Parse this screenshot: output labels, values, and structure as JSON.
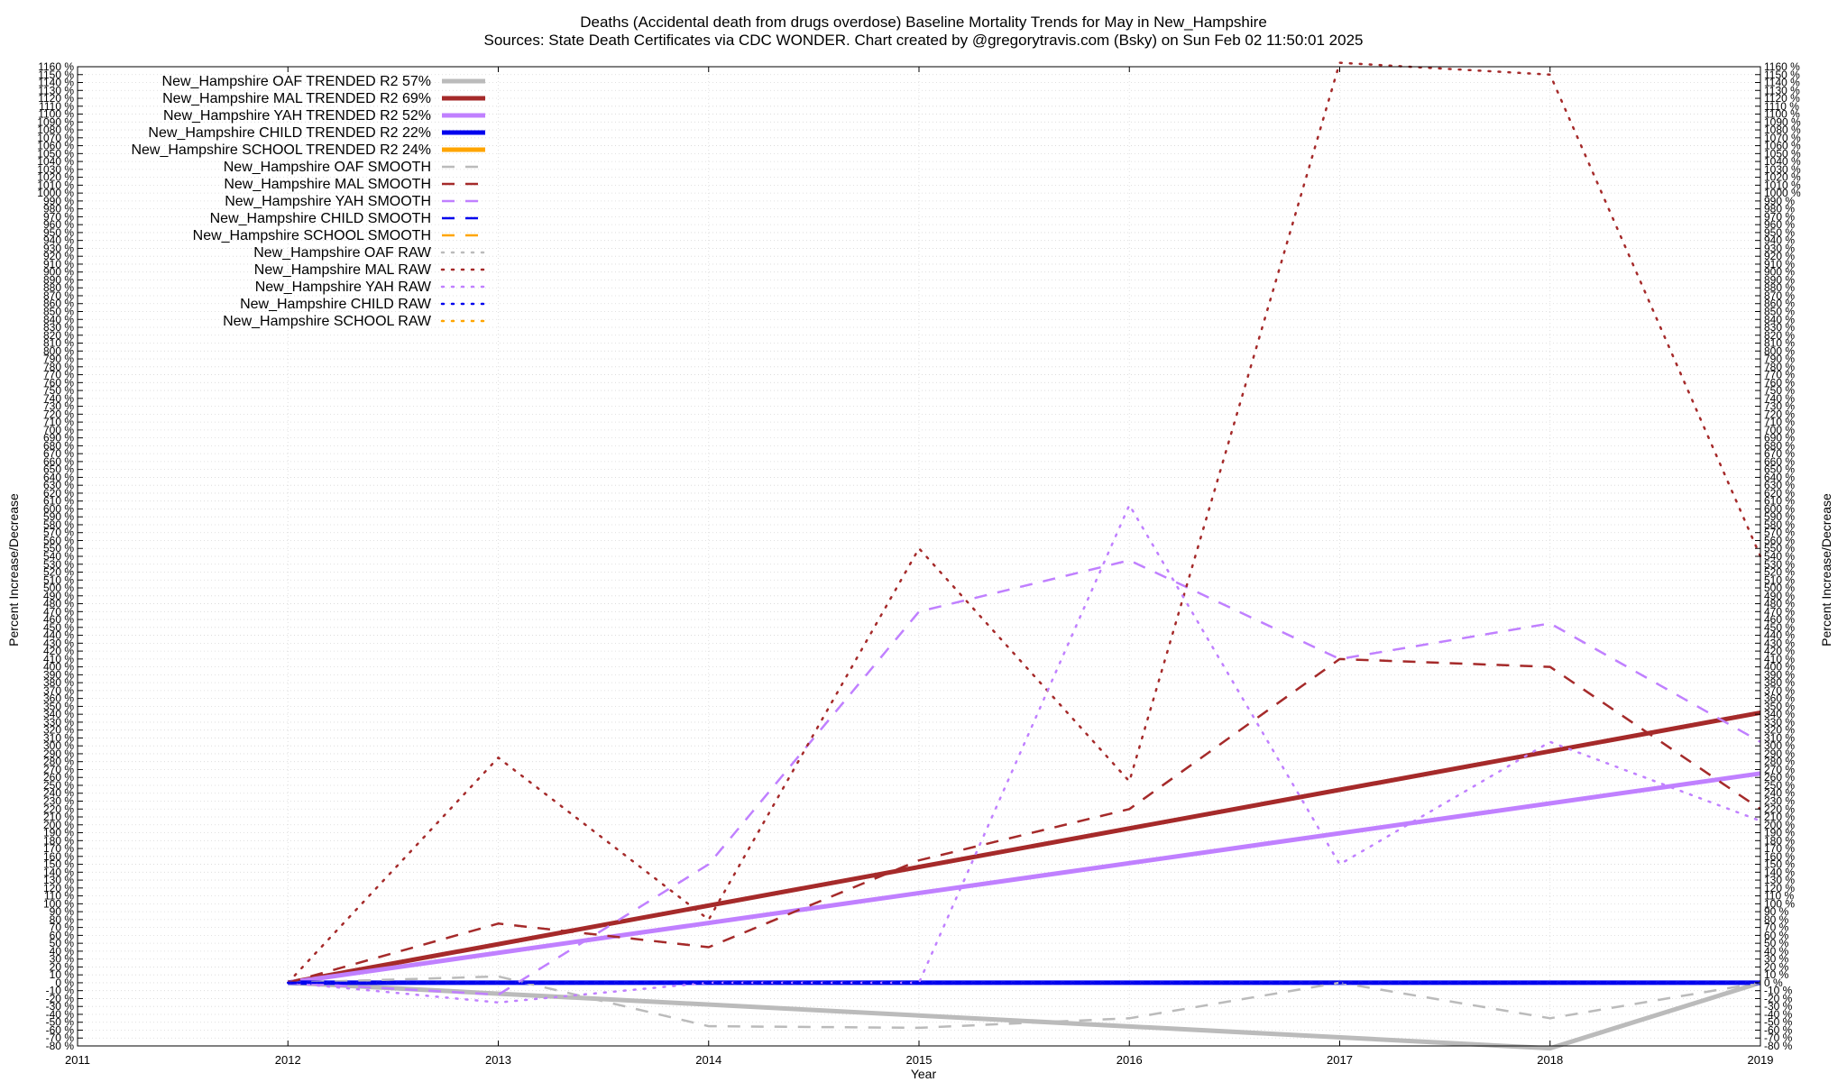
{
  "chart_data": {
    "type": "line",
    "title_line1": "Deaths (Accidental death from drugs overdose)  Baseline Mortality Trends for May in New_Hampshire",
    "title_line2": "Sources: State Death Certificates via CDC WONDER.                Chart created by @gregorytravis.com (Bsky) on Sun Feb 02 11:50:01 2025",
    "xlabel": "Year",
    "ylabel": "Percent Increase/Decrease",
    "xlim": [
      2011,
      2019
    ],
    "ylim": [
      -80,
      1160
    ],
    "ytick_step": 10,
    "ytick_suffix": " %",
    "x_ticks": [
      "2011",
      "2012",
      "2013",
      "2014",
      "2015",
      "2016",
      "2017",
      "2018",
      "2019"
    ],
    "grid": true,
    "legend_position": "top-left",
    "series": [
      {
        "name": "New_Hampshire OAF TRENDED R2  57%",
        "color": "#bbbbbb",
        "style": "solid",
        "x": [
          2012,
          2018,
          2019
        ],
        "y": [
          0,
          -83,
          0
        ]
      },
      {
        "name": "New_Hampshire MAL TRENDED R2  69%",
        "color": "#a52a2a",
        "style": "solid",
        "x": [
          2012,
          2019
        ],
        "y": [
          0,
          342
        ]
      },
      {
        "name": "New_Hampshire YAH TRENDED R2  52%",
        "color": "#c080ff",
        "style": "solid",
        "x": [
          2012,
          2019
        ],
        "y": [
          0,
          265
        ]
      },
      {
        "name": "New_Hampshire CHILD TRENDED R2  22%",
        "color": "#0000ee",
        "style": "solid",
        "x": [
          2012,
          2019
        ],
        "y": [
          0,
          0
        ]
      },
      {
        "name": "New_Hampshire SCHOOL TRENDED R2  24%",
        "color": "#ffa500",
        "style": "solid",
        "x": [],
        "y": []
      },
      {
        "name": "New_Hampshire OAF SMOOTH",
        "color": "#bbbbbb",
        "style": "dashed",
        "x": [
          2012,
          2013,
          2014,
          2015,
          2016,
          2017,
          2018,
          2019
        ],
        "y": [
          0,
          8,
          -55,
          -57,
          -45,
          0,
          -45,
          0
        ]
      },
      {
        "name": "New_Hampshire MAL SMOOTH",
        "color": "#a52a2a",
        "style": "dashed",
        "x": [
          2012,
          2013,
          2014,
          2015,
          2016,
          2017,
          2018,
          2019
        ],
        "y": [
          0,
          75,
          45,
          155,
          220,
          410,
          400,
          220
        ]
      },
      {
        "name": "New_Hampshire YAH SMOOTH",
        "color": "#c080ff",
        "style": "dashed",
        "x": [
          2012,
          2013,
          2014,
          2015,
          2016,
          2017,
          2018,
          2019
        ],
        "y": [
          0,
          -15,
          150,
          470,
          535,
          410,
          455,
          305
        ]
      },
      {
        "name": "New_Hampshire CHILD SMOOTH",
        "color": "#0000ee",
        "style": "dashed",
        "x": [
          2012,
          2019
        ],
        "y": [
          0,
          0
        ]
      },
      {
        "name": "New_Hampshire SCHOOL SMOOTH",
        "color": "#ffa500",
        "style": "dashed",
        "x": [],
        "y": []
      },
      {
        "name": "New_Hampshire OAF RAW",
        "color": "#bbbbbb",
        "style": "dotted",
        "x": [
          2012,
          2013,
          2014,
          2015,
          2016,
          2017,
          2018,
          2019
        ],
        "y": [
          0,
          0,
          0,
          0,
          0,
          0,
          0,
          0
        ]
      },
      {
        "name": "New_Hampshire MAL RAW",
        "color": "#a52a2a",
        "style": "dotted",
        "x": [
          2012,
          2013,
          2014,
          2015,
          2016,
          2017,
          2018,
          2019
        ],
        "y": [
          0,
          285,
          80,
          550,
          255,
          1165,
          1150,
          540
        ]
      },
      {
        "name": "New_Hampshire YAH RAW",
        "color": "#c080ff",
        "style": "dotted",
        "x": [
          2012,
          2013,
          2014,
          2015,
          2016,
          2017,
          2018,
          2019
        ],
        "y": [
          0,
          -25,
          0,
          0,
          605,
          150,
          305,
          205
        ]
      },
      {
        "name": "New_Hampshire CHILD RAW",
        "color": "#0000ee",
        "style": "dotted",
        "x": [
          2012,
          2019
        ],
        "y": [
          0,
          0
        ]
      },
      {
        "name": "New_Hampshire SCHOOL RAW",
        "color": "#ffa500",
        "style": "dotted",
        "x": [],
        "y": []
      }
    ]
  }
}
